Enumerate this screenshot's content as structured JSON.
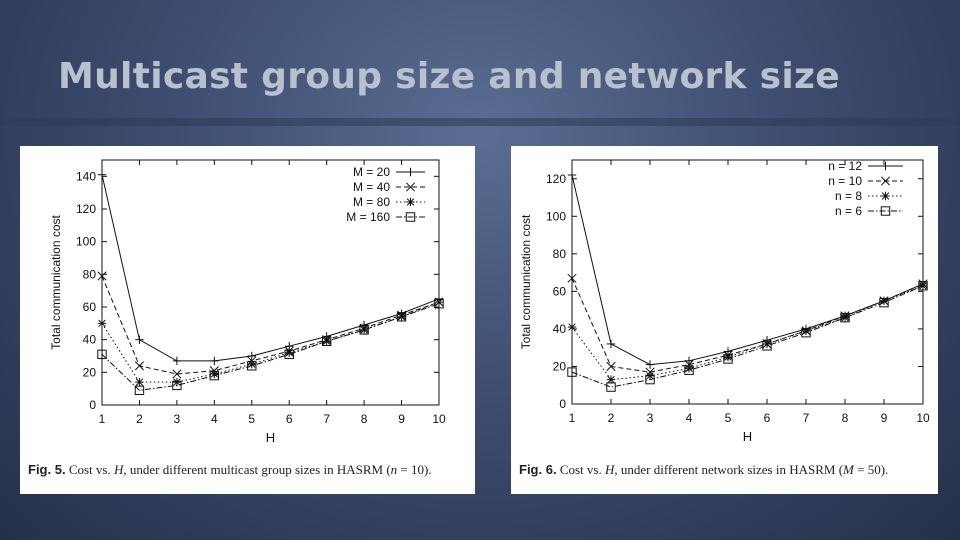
{
  "slide": {
    "title": "Multicast group size and network size"
  },
  "captions": [
    {
      "fig": "Fig. 5.",
      "pre": "Cost vs. ",
      "var": "H",
      "mid": ", under different multicast group sizes in HASRM (",
      "param": "n",
      "tail": " = 10)."
    },
    {
      "fig": "Fig. 6.",
      "pre": "Cost vs. ",
      "var": "H",
      "mid": ", under different network sizes in HASRM (",
      "param": "M",
      "tail": " = 50)."
    }
  ],
  "chart_data": [
    {
      "type": "line",
      "xlabel": "H",
      "ylabel": "Total communication cost",
      "x": [
        1,
        2,
        3,
        4,
        5,
        6,
        7,
        8,
        9,
        10
      ],
      "xlim": [
        1,
        10
      ],
      "ylim": [
        0,
        150
      ],
      "yticks": [
        0,
        20,
        40,
        60,
        80,
        100,
        120,
        140
      ],
      "grid": false,
      "legend_position": "top-right",
      "series": [
        {
          "name": "M = 20",
          "marker": "plus",
          "dash": "solid",
          "values": [
            141,
            40,
            27,
            27,
            30,
            36,
            42,
            49,
            56,
            65
          ]
        },
        {
          "name": "M = 40",
          "marker": "x",
          "dash": "dashed",
          "values": [
            79,
            24,
            19,
            21,
            27,
            33,
            40,
            47,
            55,
            63
          ]
        },
        {
          "name": "M = 80",
          "marker": "star",
          "dash": "dotted",
          "values": [
            50,
            14,
            14,
            19,
            25,
            32,
            39,
            46,
            54,
            63
          ]
        },
        {
          "name": "M = 160",
          "marker": "square",
          "dash": "dash-dot",
          "values": [
            31,
            9,
            12,
            18,
            24,
            31,
            39,
            46,
            54,
            62
          ]
        }
      ]
    },
    {
      "type": "line",
      "xlabel": "H",
      "ylabel": "Total communication cost",
      "x": [
        1,
        2,
        3,
        4,
        5,
        6,
        7,
        8,
        9,
        10
      ],
      "xlim": [
        1,
        10
      ],
      "ylim": [
        0,
        130
      ],
      "yticks": [
        0,
        20,
        40,
        60,
        80,
        100,
        120
      ],
      "grid": false,
      "legend_position": "top-right",
      "series": [
        {
          "name": "n = 12",
          "marker": "plus",
          "dash": "solid",
          "values": [
            122,
            32,
            21,
            23,
            28,
            34,
            40,
            47,
            55,
            64
          ]
        },
        {
          "name": "n = 10",
          "marker": "x",
          "dash": "dashed",
          "values": [
            67,
            20,
            17,
            21,
            26,
            32,
            39,
            47,
            55,
            64
          ]
        },
        {
          "name": "n = 8",
          "marker": "star",
          "dash": "dotted",
          "values": [
            41,
            13,
            15,
            19,
            25,
            32,
            39,
            46,
            55,
            63
          ]
        },
        {
          "name": "n = 6",
          "marker": "square",
          "dash": "dash-dot",
          "values": [
            17,
            9,
            13,
            18,
            24,
            31,
            38,
            46,
            54,
            63
          ]
        }
      ]
    }
  ]
}
